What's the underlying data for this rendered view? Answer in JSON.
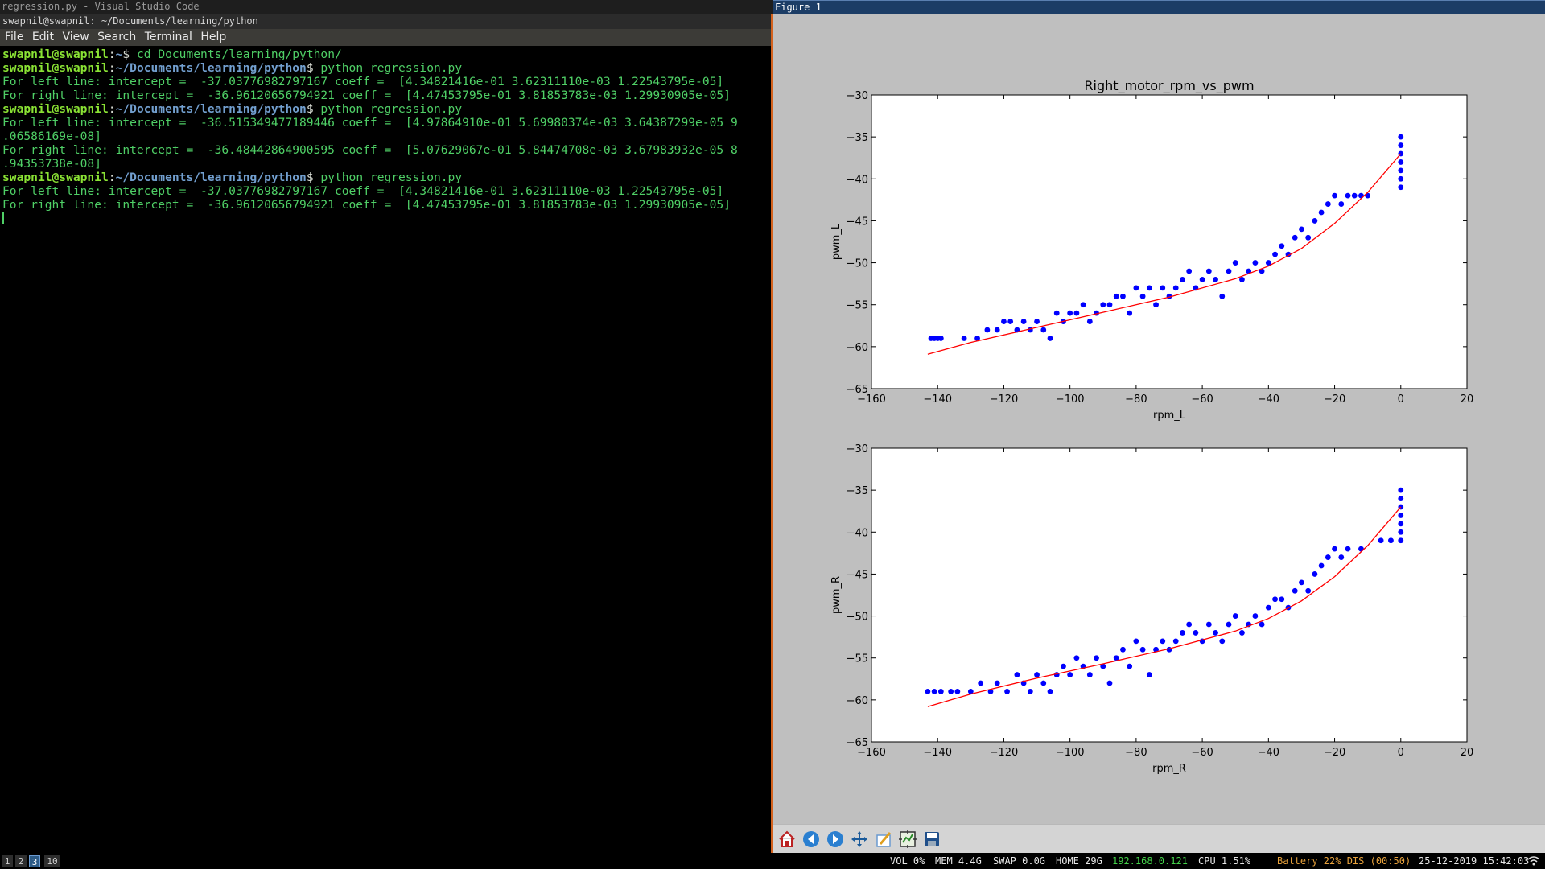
{
  "app_title": "regression.py - Visual Studio Code",
  "terminal": {
    "title": "swapnil@swapnil: ~/Documents/learning/python",
    "menu": [
      "File",
      "Edit",
      "View",
      "Search",
      "Terminal",
      "Help"
    ],
    "lines": [
      {
        "user": "swapnil@swapnil",
        "sep": ":",
        "path": "~",
        "dollar": "$ ",
        "cmd": "cd Documents/learning/python/"
      },
      {
        "user": "swapnil@swapnil",
        "sep": ":",
        "path": "~/Documents/learning/python",
        "dollar": "$ ",
        "cmd": "python regression.py"
      },
      {
        "text": "For left line: intercept =  -37.03776982797167 coeff =  [4.34821416e-01 3.62311110e-03 1.22543795e-05]"
      },
      {
        "text": "For right line: intercept =  -36.96120656794921 coeff =  [4.47453795e-01 3.81853783e-03 1.29930905e-05]"
      },
      {
        "user": "swapnil@swapnil",
        "sep": ":",
        "path": "~/Documents/learning/python",
        "dollar": "$ ",
        "cmd": "python regression.py"
      },
      {
        "text": "For left line: intercept =  -36.515349477189446 coeff =  [4.97864910e-01 5.69980374e-03 3.64387299e-05 9"
      },
      {
        "text": ".06586169e-08]"
      },
      {
        "text": "For right line: intercept =  -36.48442864900595 coeff =  [5.07629067e-01 5.84474708e-03 3.67983932e-05 8"
      },
      {
        "text": ".94353738e-08]"
      },
      {
        "user": "swapnil@swapnil",
        "sep": ":",
        "path": "~/Documents/learning/python",
        "dollar": "$ ",
        "cmd": "python regression.py"
      },
      {
        "text": "For left line: intercept =  -37.03776982797167 coeff =  [4.34821416e-01 3.62311110e-03 1.22543795e-05]"
      },
      {
        "text": "For right line: intercept =  -36.96120656794921 coeff =  [4.47453795e-01 3.81853783e-03 1.29930905e-05]"
      }
    ]
  },
  "figure": {
    "window_title": "Figure 1",
    "toolbar": [
      "home-icon",
      "back-icon",
      "forward-icon",
      "pan-icon",
      "zoom-icon",
      "subplots-icon",
      "save-icon"
    ]
  },
  "chart_data": [
    {
      "type": "scatter",
      "title": "Right_motor_rpm_vs_pwm",
      "xlabel": "rpm_L",
      "ylabel": "pwm_L",
      "xlim": [
        -160,
        20
      ],
      "ylim": [
        -65,
        -30
      ],
      "xticks": [
        "−160",
        "−140",
        "−120",
        "−100",
        "−80",
        "−60",
        "−40",
        "−20",
        "0",
        "20"
      ],
      "yticks": [
        "−30",
        "−35",
        "−40",
        "−45",
        "−50",
        "−55",
        "−60",
        "−65"
      ],
      "series": [
        {
          "color": "#0000ff",
          "kind": "points",
          "points": [
            [
              -142,
              -59
            ],
            [
              -141,
              -59
            ],
            [
              -140,
              -59
            ],
            [
              -139,
              -59
            ],
            [
              -132,
              -59
            ],
            [
              -128,
              -59
            ],
            [
              -125,
              -58
            ],
            [
              -122,
              -58
            ],
            [
              -120,
              -57
            ],
            [
              -118,
              -57
            ],
            [
              -116,
              -58
            ],
            [
              -114,
              -57
            ],
            [
              -112,
              -58
            ],
            [
              -110,
              -57
            ],
            [
              -108,
              -58
            ],
            [
              -106,
              -59
            ],
            [
              -104,
              -56
            ],
            [
              -102,
              -57
            ],
            [
              -100,
              -56
            ],
            [
              -98,
              -56
            ],
            [
              -96,
              -55
            ],
            [
              -94,
              -57
            ],
            [
              -92,
              -56
            ],
            [
              -90,
              -55
            ],
            [
              -88,
              -55
            ],
            [
              -86,
              -54
            ],
            [
              -84,
              -54
            ],
            [
              -82,
              -56
            ],
            [
              -80,
              -53
            ],
            [
              -78,
              -54
            ],
            [
              -76,
              -53
            ],
            [
              -74,
              -55
            ],
            [
              -72,
              -53
            ],
            [
              -70,
              -54
            ],
            [
              -68,
              -53
            ],
            [
              -66,
              -52
            ],
            [
              -64,
              -51
            ],
            [
              -62,
              -53
            ],
            [
              -60,
              -52
            ],
            [
              -58,
              -51
            ],
            [
              -56,
              -52
            ],
            [
              -54,
              -54
            ],
            [
              -52,
              -51
            ],
            [
              -50,
              -50
            ],
            [
              -48,
              -52
            ],
            [
              -46,
              -51
            ],
            [
              -44,
              -50
            ],
            [
              -42,
              -51
            ],
            [
              -40,
              -50
            ],
            [
              -38,
              -49
            ],
            [
              -36,
              -48
            ],
            [
              -34,
              -49
            ],
            [
              -32,
              -47
            ],
            [
              -30,
              -46
            ],
            [
              -28,
              -47
            ],
            [
              -26,
              -45
            ],
            [
              -24,
              -44
            ],
            [
              -22,
              -43
            ],
            [
              -20,
              -42
            ],
            [
              -18,
              -43
            ],
            [
              -16,
              -42
            ],
            [
              -14,
              -42
            ],
            [
              -12,
              -42
            ],
            [
              -10,
              -42
            ],
            [
              0,
              -35
            ],
            [
              0,
              -36
            ],
            [
              0,
              -37
            ],
            [
              0,
              -38
            ],
            [
              0,
              -39
            ],
            [
              0,
              -40
            ],
            [
              0,
              -41
            ]
          ]
        },
        {
          "color": "#ff0000",
          "kind": "line",
          "points": [
            [
              -143,
              -60.9
            ],
            [
              -130,
              -59.5
            ],
            [
              -110,
              -57.7
            ],
            [
              -90,
              -55.9
            ],
            [
              -70,
              -54.1
            ],
            [
              -50,
              -51.9
            ],
            [
              -40,
              -50.4
            ],
            [
              -30,
              -48.3
            ],
            [
              -20,
              -45.3
            ],
            [
              -10,
              -41.6
            ],
            [
              0,
              -37.0
            ]
          ]
        }
      ]
    },
    {
      "type": "scatter",
      "title": "",
      "xlabel": "rpm_R",
      "ylabel": "pwm_R",
      "xlim": [
        -160,
        20
      ],
      "ylim": [
        -65,
        -30
      ],
      "xticks": [
        "−160",
        "−140",
        "−120",
        "−100",
        "−80",
        "−60",
        "−40",
        "−20",
        "0",
        "20"
      ],
      "yticks": [
        "−30",
        "−35",
        "−40",
        "−45",
        "−50",
        "−55",
        "−60",
        "−65"
      ],
      "series": [
        {
          "color": "#0000ff",
          "kind": "points",
          "points": [
            [
              -143,
              -59
            ],
            [
              -141,
              -59
            ],
            [
              -139,
              -59
            ],
            [
              -136,
              -59
            ],
            [
              -134,
              -59
            ],
            [
              -130,
              -59
            ],
            [
              -127,
              -58
            ],
            [
              -124,
              -59
            ],
            [
              -122,
              -58
            ],
            [
              -119,
              -59
            ],
            [
              -116,
              -57
            ],
            [
              -114,
              -58
            ],
            [
              -112,
              -59
            ],
            [
              -110,
              -57
            ],
            [
              -108,
              -58
            ],
            [
              -106,
              -59
            ],
            [
              -104,
              -57
            ],
            [
              -102,
              -56
            ],
            [
              -100,
              -57
            ],
            [
              -98,
              -55
            ],
            [
              -96,
              -56
            ],
            [
              -94,
              -57
            ],
            [
              -92,
              -55
            ],
            [
              -90,
              -56
            ],
            [
              -88,
              -58
            ],
            [
              -86,
              -55
            ],
            [
              -84,
              -54
            ],
            [
              -82,
              -56
            ],
            [
              -80,
              -53
            ],
            [
              -78,
              -54
            ],
            [
              -76,
              -57
            ],
            [
              -74,
              -54
            ],
            [
              -72,
              -53
            ],
            [
              -70,
              -54
            ],
            [
              -68,
              -53
            ],
            [
              -66,
              -52
            ],
            [
              -64,
              -51
            ],
            [
              -62,
              -52
            ],
            [
              -60,
              -53
            ],
            [
              -58,
              -51
            ],
            [
              -56,
              -52
            ],
            [
              -54,
              -53
            ],
            [
              -52,
              -51
            ],
            [
              -50,
              -50
            ],
            [
              -48,
              -52
            ],
            [
              -46,
              -51
            ],
            [
              -44,
              -50
            ],
            [
              -42,
              -51
            ],
            [
              -40,
              -49
            ],
            [
              -38,
              -48
            ],
            [
              -36,
              -48
            ],
            [
              -34,
              -49
            ],
            [
              -32,
              -47
            ],
            [
              -30,
              -46
            ],
            [
              -28,
              -47
            ],
            [
              -26,
              -45
            ],
            [
              -24,
              -44
            ],
            [
              -22,
              -43
            ],
            [
              -20,
              -42
            ],
            [
              -18,
              -43
            ],
            [
              -16,
              -42
            ],
            [
              -12,
              -42
            ],
            [
              -6,
              -41
            ],
            [
              -3,
              -41
            ],
            [
              0,
              -35
            ],
            [
              0,
              -36
            ],
            [
              0,
              -37
            ],
            [
              0,
              -38
            ],
            [
              0,
              -39
            ],
            [
              0,
              -40
            ],
            [
              0,
              -41
            ]
          ]
        },
        {
          "color": "#ff0000",
          "kind": "line",
          "points": [
            [
              -143,
              -60.8
            ],
            [
              -130,
              -59.3
            ],
            [
              -110,
              -57.4
            ],
            [
              -90,
              -55.7
            ],
            [
              -70,
              -53.9
            ],
            [
              -50,
              -51.8
            ],
            [
              -40,
              -50.3
            ],
            [
              -30,
              -48.2
            ],
            [
              -20,
              -45.3
            ],
            [
              -10,
              -41.6
            ],
            [
              0,
              -37.0
            ]
          ]
        }
      ]
    }
  ],
  "status": {
    "workspaces": [
      "1",
      "2",
      "3",
      "10"
    ],
    "vol": "VOL 0%",
    "mem": "MEM 4.4G",
    "swap": "SWAP 0.0G",
    "home": "HOME 29G",
    "ip": "192.168.0.121",
    "cpu": "CPU 1.51%",
    "battery": "Battery 22% DIS (00:50)",
    "datetime": "25-12-2019 15:42:03"
  }
}
